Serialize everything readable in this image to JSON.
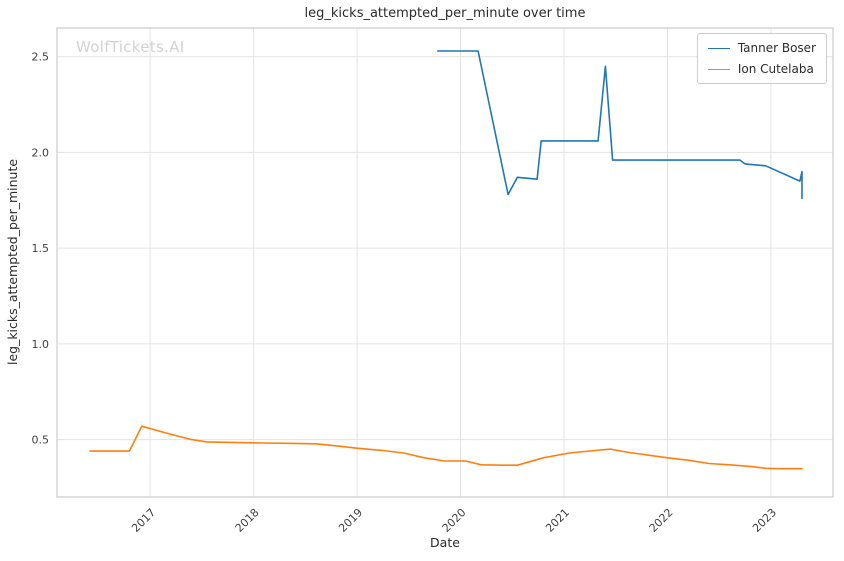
{
  "watermark": {
    "text": "WolfTickets.AI"
  },
  "chart_data": {
    "type": "line",
    "title": "leg_kicks_attempted_per_minute over time",
    "xlabel": "Date",
    "ylabel": "leg_kicks_attempted_per_minute",
    "xlim": [
      2016.1,
      2023.6
    ],
    "ylim": [
      0.2,
      2.65
    ],
    "x_ticks": [
      2017,
      2018,
      2019,
      2020,
      2021,
      2022,
      2023
    ],
    "y_ticks": [
      0.5,
      1.0,
      1.5,
      2.0,
      2.5
    ],
    "grid": true,
    "legend_position": "upper right",
    "series": [
      {
        "name": "Tanner Boser",
        "color": "#1f77b4",
        "points": [
          [
            2019.78,
            2.53
          ],
          [
            2020.17,
            2.53
          ],
          [
            2020.46,
            1.78
          ],
          [
            2020.55,
            1.87
          ],
          [
            2020.74,
            1.86
          ],
          [
            2020.78,
            2.06
          ],
          [
            2021.33,
            2.06
          ],
          [
            2021.4,
            2.45
          ],
          [
            2021.47,
            1.96
          ],
          [
            2022.7,
            1.96
          ],
          [
            2022.75,
            1.94
          ],
          [
            2022.95,
            1.93
          ],
          [
            2023.28,
            1.85
          ],
          [
            2023.3,
            1.9
          ],
          [
            2023.3,
            1.76
          ]
        ]
      },
      {
        "name": "Ion Cutelaba",
        "color": "#ff7f0e",
        "points": [
          [
            2016.42,
            0.44
          ],
          [
            2016.62,
            0.44
          ],
          [
            2016.8,
            0.44
          ],
          [
            2016.92,
            0.57
          ],
          [
            2017.15,
            0.535
          ],
          [
            2017.4,
            0.5
          ],
          [
            2017.55,
            0.488
          ],
          [
            2017.8,
            0.485
          ],
          [
            2018.1,
            0.482
          ],
          [
            2018.4,
            0.48
          ],
          [
            2018.6,
            0.478
          ],
          [
            2018.75,
            0.47
          ],
          [
            2019.0,
            0.455
          ],
          [
            2019.25,
            0.443
          ],
          [
            2019.45,
            0.43
          ],
          [
            2019.65,
            0.405
          ],
          [
            2019.85,
            0.388
          ],
          [
            2020.05,
            0.388
          ],
          [
            2020.2,
            0.368
          ],
          [
            2020.4,
            0.366
          ],
          [
            2020.55,
            0.366
          ],
          [
            2020.8,
            0.405
          ],
          [
            2021.05,
            0.43
          ],
          [
            2021.3,
            0.443
          ],
          [
            2021.45,
            0.45
          ],
          [
            2021.6,
            0.435
          ],
          [
            2021.8,
            0.42
          ],
          [
            2022.0,
            0.405
          ],
          [
            2022.2,
            0.392
          ],
          [
            2022.4,
            0.375
          ],
          [
            2022.6,
            0.368
          ],
          [
            2022.8,
            0.36
          ],
          [
            2022.95,
            0.35
          ],
          [
            2023.1,
            0.348
          ],
          [
            2023.3,
            0.348
          ]
        ]
      }
    ]
  }
}
